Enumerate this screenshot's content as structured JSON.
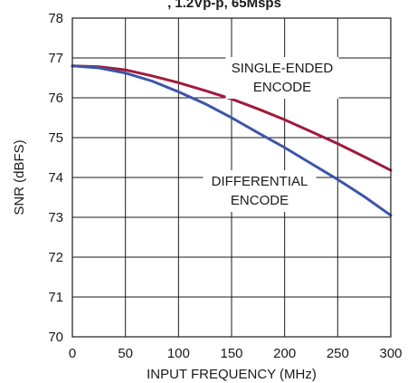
{
  "chart_data": {
    "type": "line",
    "title_partial": ", 1.2Vp-p, 65Msps",
    "xlabel": "INPUT FREQUENCY (MHz)",
    "ylabel": "SNR (dBFS)",
    "xlim": [
      0,
      300
    ],
    "ylim": [
      70,
      78
    ],
    "xticks": [
      0,
      50,
      100,
      150,
      200,
      250,
      300
    ],
    "yticks": [
      70,
      71,
      72,
      73,
      74,
      75,
      76,
      77,
      78
    ],
    "grid": true,
    "annotations": [
      {
        "lines": [
          "SINGLE-ENDED",
          "ENCODE"
        ],
        "series": 0
      },
      {
        "lines": [
          "DIFFERENTIAL",
          "ENCODE"
        ],
        "series": 1
      }
    ],
    "series": [
      {
        "color": "#a01a3c",
        "x": [
          0,
          25,
          50,
          75,
          100,
          125,
          150,
          175,
          200,
          225,
          250,
          275,
          300
        ],
        "y": [
          76.8,
          76.78,
          76.7,
          76.55,
          76.38,
          76.18,
          75.97,
          75.72,
          75.45,
          75.15,
          74.85,
          74.52,
          74.18
        ]
      },
      {
        "color": "#3b55a8",
        "x": [
          0,
          25,
          50,
          75,
          100,
          125,
          150,
          175,
          200,
          225,
          250,
          275,
          300
        ],
        "y": [
          76.8,
          76.75,
          76.62,
          76.42,
          76.15,
          75.85,
          75.5,
          75.12,
          74.75,
          74.35,
          73.95,
          73.52,
          73.05
        ]
      }
    ]
  }
}
